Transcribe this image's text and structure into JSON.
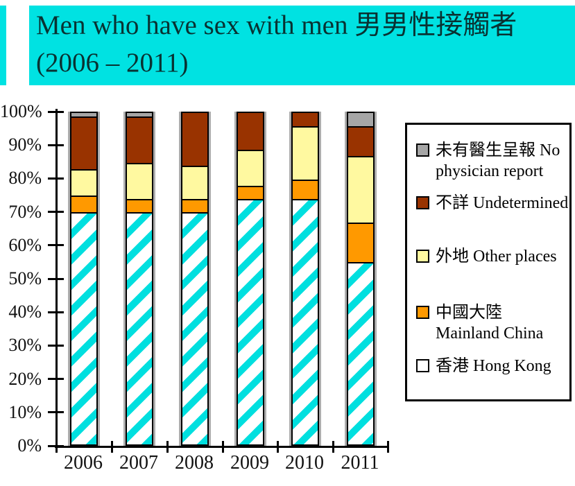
{
  "title": {
    "line1": "Men who have sex with men 男男性接觸者",
    "line2": "(2006 – 2011)"
  },
  "colors": {
    "title_bg": "#00E2E2",
    "title_text": "#093232",
    "axis": "#000000",
    "hk_stripe_cyan": "#00DFDF",
    "hk_bg": "#FFFFFF",
    "mainland_orange": "#FF9900",
    "other_yellow": "#FFF9A0",
    "undetermined_brown": "#993300",
    "no_report_gray": "#A6A6A6"
  },
  "chart_data": {
    "type": "bar",
    "subtype": "stacked-percent",
    "title": "Men who have sex with men 男男性接觸者 (2006 – 2011)",
    "xlabel": "",
    "ylabel": "",
    "ylim": [
      0,
      100
    ],
    "grid": false,
    "legend_position": "right",
    "categories": [
      "2006",
      "2007",
      "2008",
      "2009",
      "2010",
      "2011"
    ],
    "y_ticks": [
      "100%",
      "90%",
      "80%",
      "70%",
      "60%",
      "50%",
      "40%",
      "30%",
      "20%",
      "10%",
      "0%"
    ],
    "series": [
      {
        "key": "hong-kong",
        "name": "香港 Hong Kong",
        "fill": "stripes",
        "values": [
          70,
          70,
          70,
          74,
          74,
          55
        ]
      },
      {
        "key": "mainland-china",
        "name": "中國大陸 Mainland China",
        "fill": "#FF9900",
        "values": [
          5,
          4,
          4,
          4,
          6,
          12
        ]
      },
      {
        "key": "other-places",
        "name": "外地 Other places",
        "fill": "#FFF9A0",
        "values": [
          8,
          11,
          10,
          11,
          16,
          20
        ]
      },
      {
        "key": "undetermined",
        "name": "不詳 Undetermined",
        "fill": "#993300",
        "values": [
          16,
          14,
          16,
          11,
          4,
          9
        ]
      },
      {
        "key": "no-physician-report",
        "name": "未有醫生呈報 No physician report",
        "fill": "#A6A6A6",
        "values": [
          1,
          1,
          0,
          0,
          0,
          4
        ]
      }
    ]
  },
  "legend": {
    "items": [
      {
        "key": "no-physician-report",
        "label": "未有醫生呈報 No physician report",
        "swatch": "#A6A6A6"
      },
      {
        "key": "undetermined",
        "label": "不詳 Undetermined",
        "swatch": "#993300"
      },
      {
        "key": "other-places",
        "label": "外地 Other places",
        "swatch": "#FFF9A0"
      },
      {
        "key": "mainland-china",
        "label": "中國大陸 Mainland China",
        "swatch": "#FF9900"
      },
      {
        "key": "hong-kong",
        "label": "香港 Hong Kong",
        "swatch": "#FFFFFF"
      }
    ]
  }
}
